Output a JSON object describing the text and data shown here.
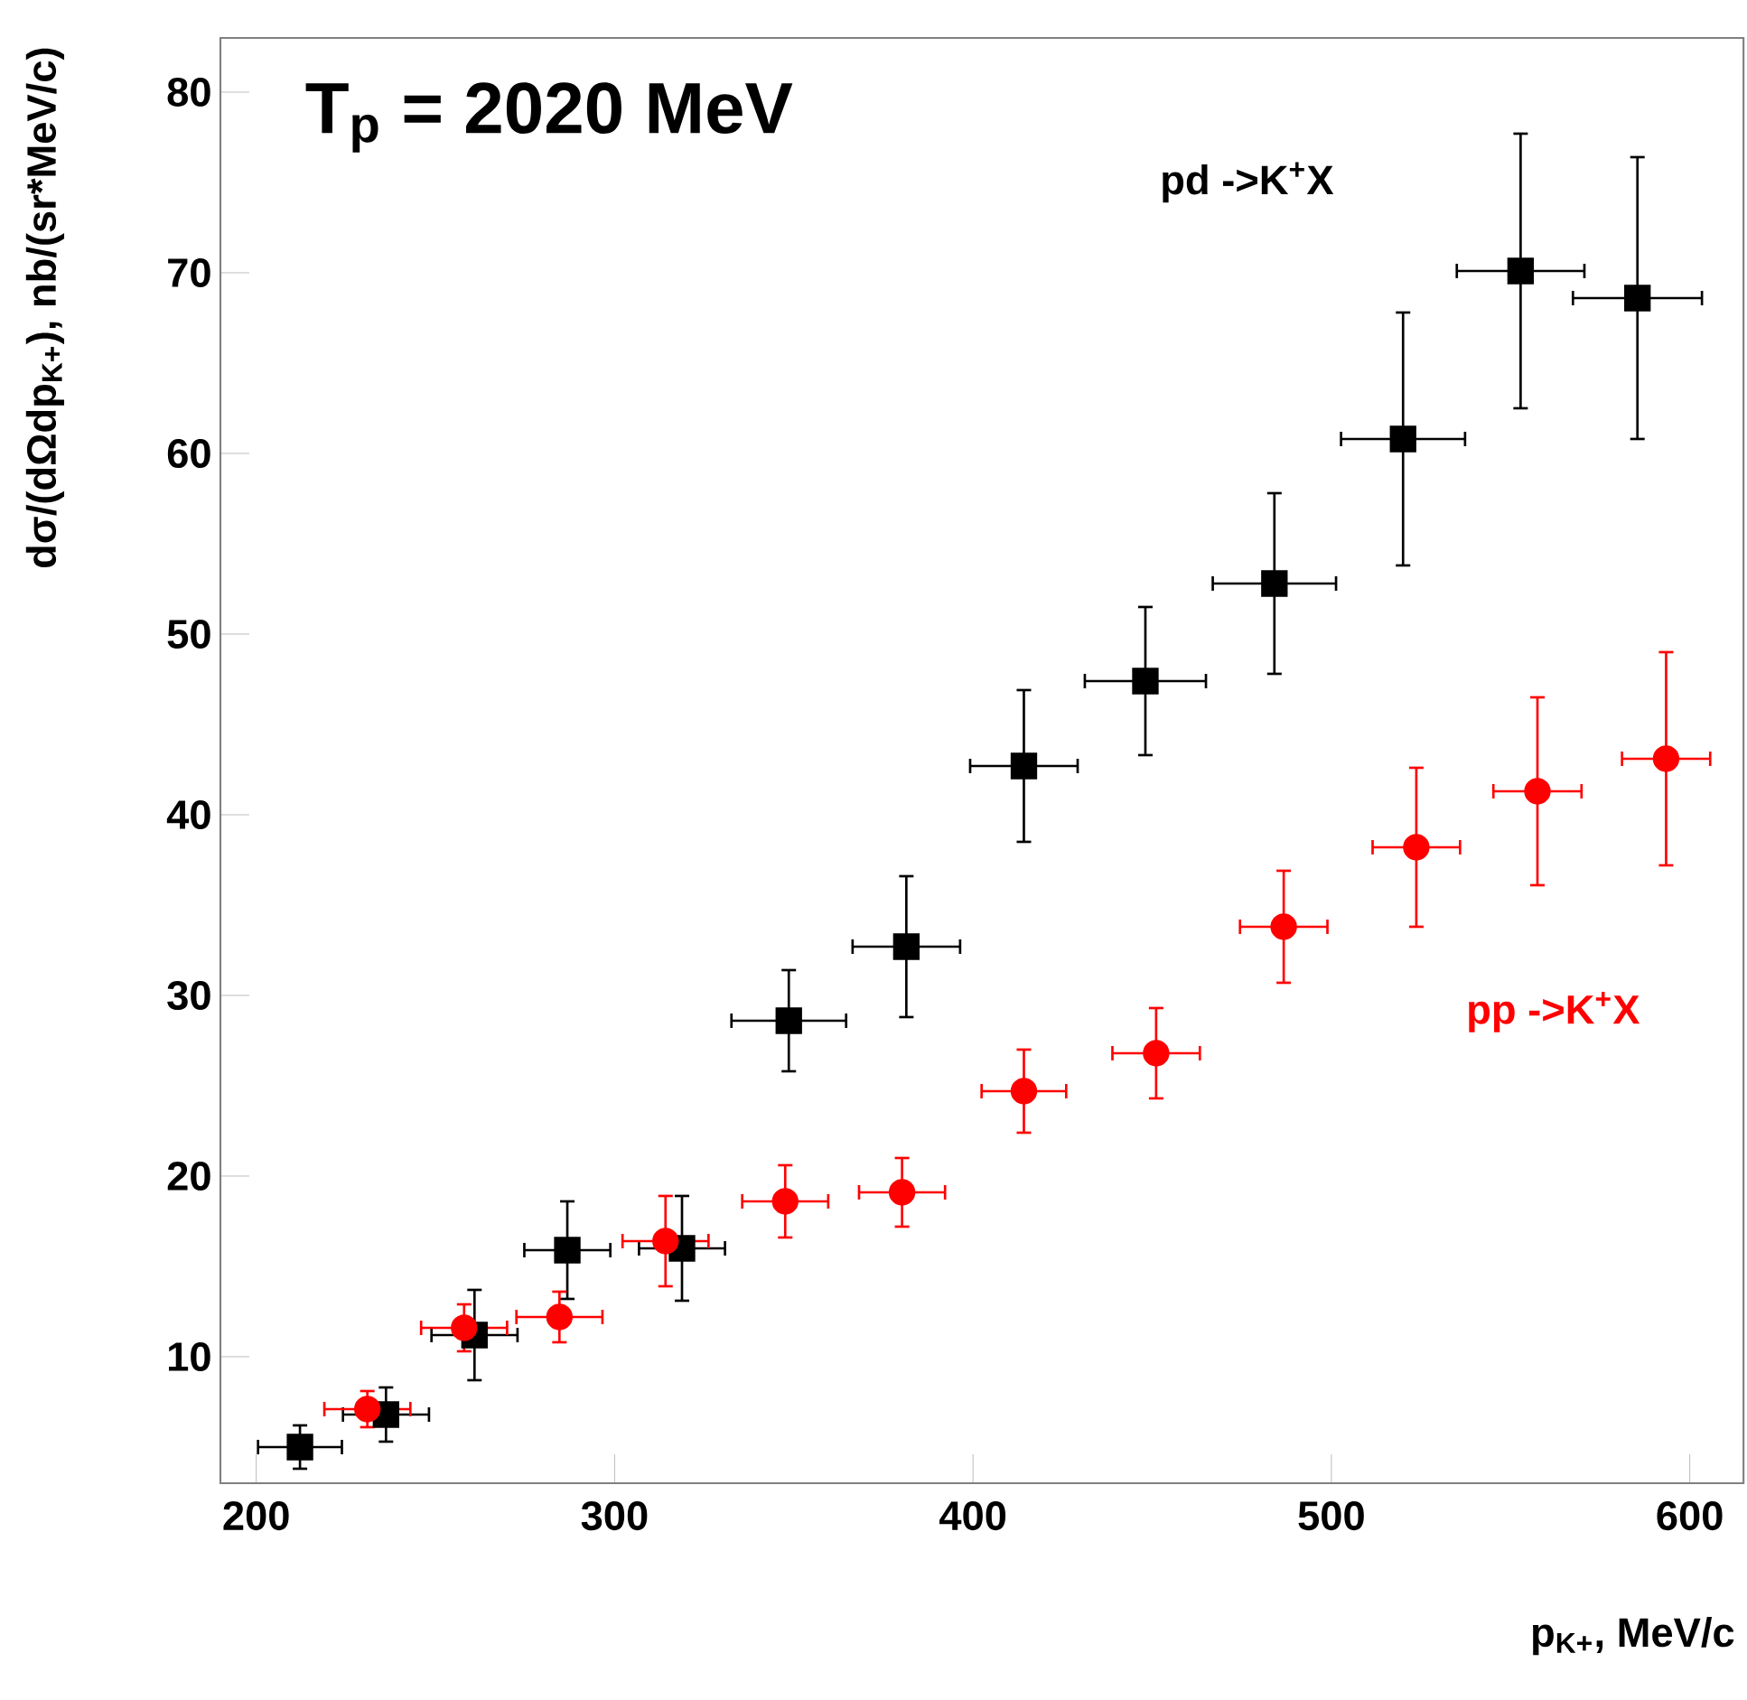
{
  "chart_data": {
    "type": "scatter",
    "xlabel": "p$_{K+}$, MeV/c",
    "ylabel": "dσ/(dΩdp$_{K+}$), nb/(sr*MeV/c)",
    "annotations": [
      "T$_{p}$ = 2020 MeV"
    ],
    "xlim": [
      190,
      615
    ],
    "ylim": [
      3,
      83
    ],
    "xticks": [
      200,
      300,
      400,
      500,
      600
    ],
    "yticks": [
      10,
      20,
      30,
      40,
      50,
      60,
      70,
      80
    ],
    "grid": false,
    "legend": false,
    "series": [
      {
        "name": "pd ->K$^{+}$X",
        "color": "#000000",
        "marker": "square",
        "x": [
          212.2,
          236.2,
          260.9,
          286.8,
          318.8,
          348.6,
          381.4,
          414.2,
          448.1,
          484.1,
          520.0,
          552.8,
          585.4
        ],
        "values": [
          5.0,
          6.8,
          11.2,
          15.9,
          16.0,
          28.6,
          32.7,
          42.7,
          47.4,
          52.8,
          60.8,
          70.1,
          68.6
        ],
        "errors": [
          1.2,
          1.5,
          2.5,
          2.7,
          2.9,
          2.8,
          3.9,
          4.2,
          4.1,
          5.0,
          7.0,
          7.6,
          7.8
        ],
        "xerrors": [
          11.7,
          12,
          12,
          12,
          12,
          16,
          15,
          15,
          16.9,
          17.2,
          17.3,
          17.8,
          18
        ]
      },
      {
        "name": "pp ->K$^{+}$X",
        "color": "#ff0000",
        "marker": "circle",
        "x": [
          231.0,
          258.0,
          284.6,
          314.2,
          347.6,
          380.2,
          414.2,
          451.1,
          486.7,
          523.7,
          557.5,
          593.4
        ],
        "values": [
          7.1,
          11.6,
          12.2,
          16.4,
          18.6,
          19.1,
          24.7,
          26.8,
          33.8,
          38.2,
          41.3,
          43.1
        ],
        "errors": [
          1.0,
          1.3,
          1.4,
          2.5,
          2.0,
          1.9,
          2.3,
          2.5,
          3.1,
          4.4,
          5.2,
          5.9
        ],
        "xerrors": [
          12,
          12,
          12,
          12,
          12,
          12,
          11.8,
          12.2,
          12.2,
          12.2,
          12.3,
          12.3
        ]
      }
    ]
  }
}
